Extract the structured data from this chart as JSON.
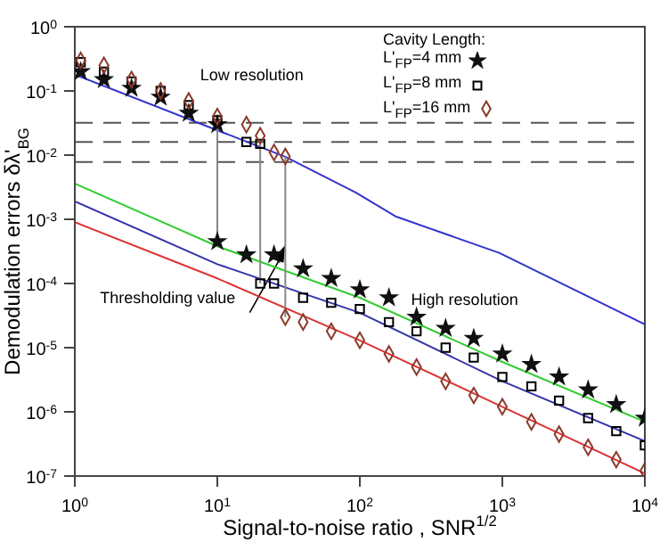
{
  "chart_data": {
    "type": "scatter",
    "xlabel": "Signal-to-noise ratio ,  SNR$^{1/2}$",
    "ylabel": "Demodulation errors δλ'$_{BG}$",
    "legend_title": "Cavity Length:",
    "legend": "top right",
    "log": "xy",
    "xlim": [
      1,
      10000
    ],
    "xticks": [
      {
        "value": 1,
        "label": "10$^{0}$"
      },
      {
        "value": 10,
        "label": "10$^{1}$"
      },
      {
        "value": 100,
        "label": "10$^{2}$"
      },
      {
        "value": 1000,
        "label": "10$^{3}$"
      },
      {
        "value": 10000,
        "label": "10$^{4}$"
      }
    ],
    "ylim": [
      1e-07,
      1
    ],
    "yticks": [
      {
        "value": 1e-07,
        "label": "10$^{-7}$"
      },
      {
        "value": 1e-06,
        "label": "10$^{-6}$"
      },
      {
        "value": 1e-05,
        "label": "10$^{-5}$"
      },
      {
        "value": 0.0001,
        "label": "10$^{-4}$"
      },
      {
        "value": 0.001,
        "label": "10$^{-3}$"
      },
      {
        "value": 0.01,
        "label": "10$^{-2}$"
      },
      {
        "value": 0.1,
        "label": "10$^{-1}$"
      },
      {
        "value": 1,
        "label": "10$^{0}$"
      }
    ],
    "annotations": [
      "Low resolution",
      "High resolution",
      {
        "text": "Thresholding value",
        "x": 30,
        "y": 0.0004
      }
    ],
    "ref_lines": [
      {
        "axis": "y",
        "value": 0.032,
        "color": "#555555",
        "line_style": "dashed"
      },
      {
        "axis": "y",
        "value": 0.016,
        "color": "#555555",
        "line_style": "dashed"
      },
      {
        "axis": "y",
        "value": 0.0078,
        "color": "#555555",
        "line_style": "dashed"
      }
    ],
    "series": [
      {
        "type": "line",
        "color": "#3333cc",
        "x": [
          1,
          30,
          94,
          180,
          950,
          10000
        ],
        "values": [
          0.18,
          0.0094,
          0.0026,
          0.0011,
          0.0003,
          2.3e-05
        ]
      },
      {
        "type": "line",
        "color": "#33cc33",
        "x": [
          1,
          10,
          100,
          1000,
          10000
        ],
        "values": [
          0.0036,
          0.00038,
          6e-05,
          6e-06,
          7e-07
        ]
      },
      {
        "type": "line",
        "color": "#3333aa",
        "x": [
          1,
          10,
          100,
          1000,
          10000
        ],
        "values": [
          0.0019,
          0.0002,
          3.5e-05,
          3e-06,
          3.5e-07
        ]
      },
      {
        "type": "line",
        "color": "#dd3333",
        "x": [
          1,
          10,
          100,
          1000,
          10000
        ],
        "values": [
          0.0009,
          0.00012,
          1.3e-05,
          1.2e-06,
          1.1e-07
        ]
      },
      {
        "type": "line",
        "color": "#888888",
        "x": [
          10,
          10
        ],
        "values": [
          0.03,
          0.00045
        ]
      },
      {
        "type": "line",
        "color": "#888888",
        "x": [
          20,
          20
        ],
        "values": [
          0.015,
          0.0001
        ]
      },
      {
        "type": "line",
        "color": "#888888",
        "x": [
          30,
          30
        ],
        "values": [
          0.0095,
          3e-05
        ]
      },
      {
        "name": "L'$_{FP}$=4 mm",
        "marker": "star",
        "color": "#111111",
        "x": [
          1.1,
          1.6,
          2.5,
          4,
          6.3,
          10,
          10,
          16,
          25,
          40,
          63,
          100,
          160,
          250,
          400,
          630,
          1000,
          1600,
          2500,
          4000,
          6300,
          10000
        ],
        "values": [
          0.2,
          0.15,
          0.11,
          0.08,
          0.045,
          0.03,
          0.00045,
          0.00028,
          0.00028,
          0.00017,
          0.00012,
          8e-05,
          6e-05,
          3e-05,
          2e-05,
          1.4e-05,
          8e-06,
          5.5e-06,
          3.5e-06,
          2.2e-06,
          1.3e-06,
          8e-07
        ]
      },
      {
        "name": "L'$_{FP}$=8 mm",
        "marker": "square",
        "color": "#000000",
        "x": [
          1.1,
          1.6,
          2.5,
          4,
          6.3,
          10,
          16,
          20,
          20,
          25,
          40,
          63,
          100,
          160,
          250,
          400,
          630,
          1000,
          1600,
          2500,
          4000,
          6300,
          10000
        ],
        "values": [
          0.28,
          0.2,
          0.14,
          0.1,
          0.06,
          0.035,
          0.016,
          0.015,
          0.0001,
          0.0001,
          6e-05,
          5e-05,
          4e-05,
          2.5e-05,
          1.8e-05,
          1e-05,
          7e-06,
          3.5e-06,
          2.5e-06,
          1.5e-06,
          8e-07,
          5e-07,
          3e-07
        ]
      },
      {
        "name": "L'$_{FP}$=16 mm",
        "marker": "diamond",
        "color": "#8b3a2a",
        "x": [
          1.1,
          1.6,
          2.5,
          4,
          6.3,
          10,
          16,
          20,
          25,
          30,
          30,
          40,
          63,
          100,
          160,
          250,
          400,
          630,
          1000,
          1600,
          2500,
          4000,
          6300,
          10000
        ],
        "values": [
          0.3,
          0.25,
          0.15,
          0.1,
          0.07,
          0.04,
          0.03,
          0.02,
          0.011,
          0.0095,
          3e-05,
          2.5e-05,
          1.8e-05,
          1.3e-05,
          8e-06,
          5e-06,
          3e-06,
          1.8e-06,
          1.2e-06,
          7e-07,
          4.5e-07,
          2.8e-07,
          1.8e-07,
          1.2e-07
        ]
      }
    ]
  }
}
